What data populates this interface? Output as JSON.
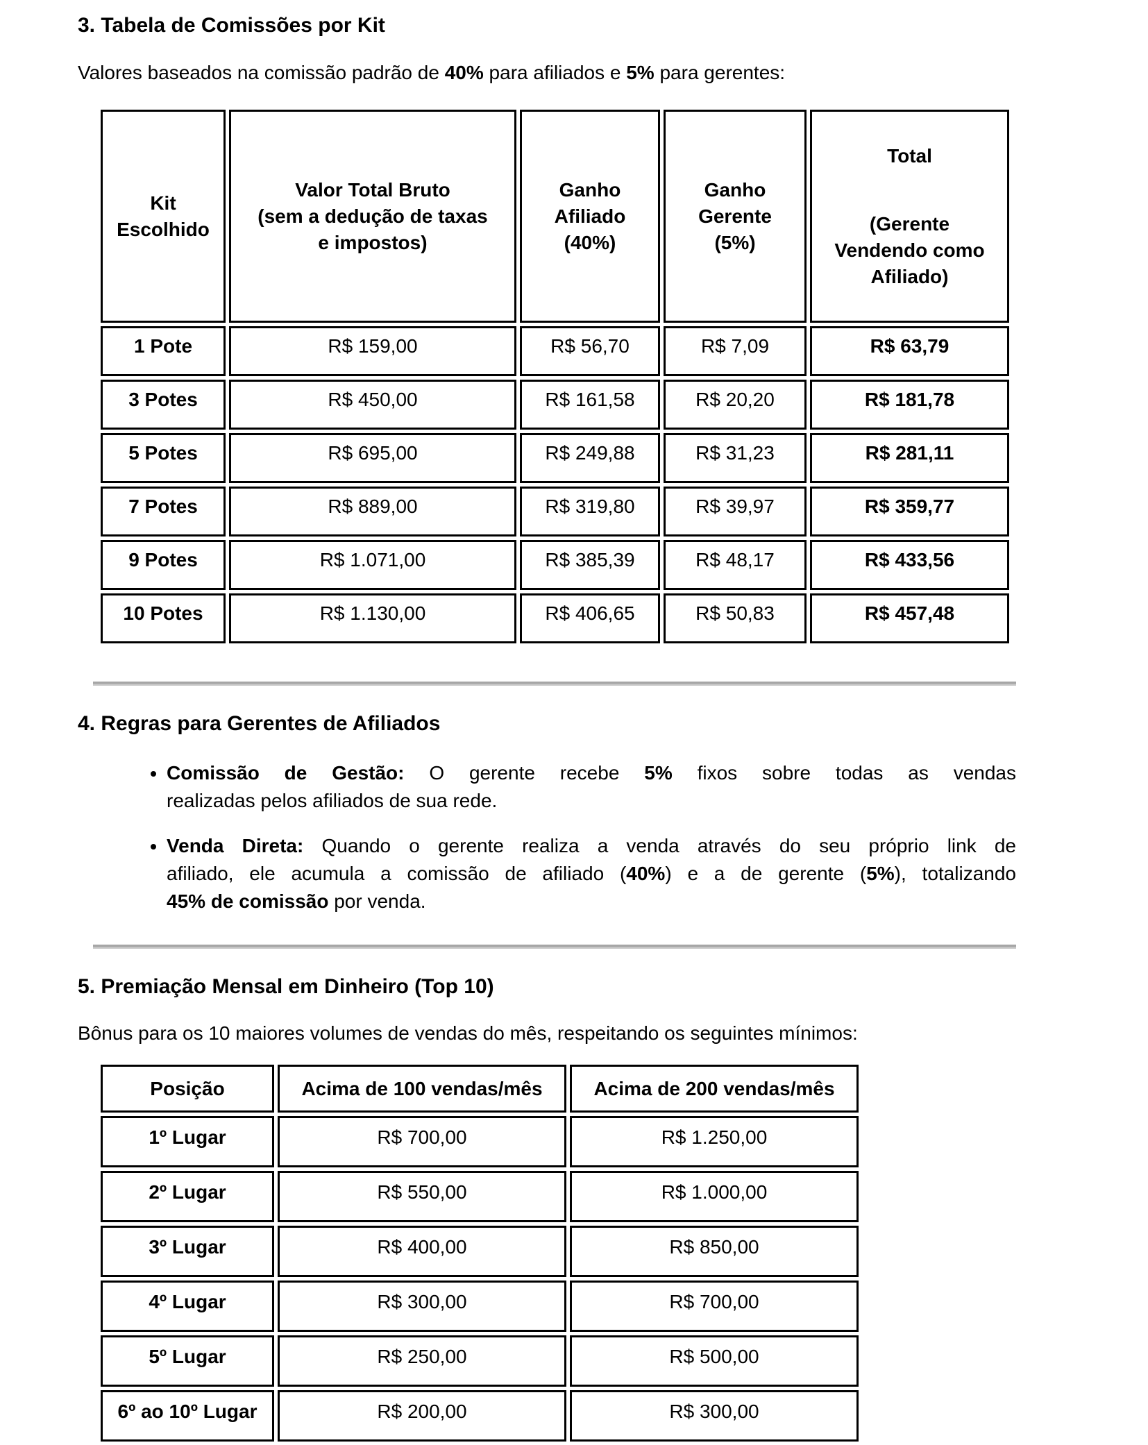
{
  "colors": {
    "text": "#000000",
    "table_border": "#000000",
    "divider": "#a6a6a6"
  },
  "section3": {
    "heading": "3. Tabela de Comissões por Kit",
    "intro": [
      {
        "t": "Valores baseados na comissão padrão de ",
        "b": false
      },
      {
        "t": "40%",
        "b": true
      },
      {
        "t": " para afiliados e ",
        "b": false
      },
      {
        "t": "5%",
        "b": true
      },
      {
        "t": " para gerentes:",
        "b": false
      }
    ]
  },
  "commission_table": {
    "headers": {
      "kit": "Kit\nEscolhido",
      "gross": "Valor Total Bruto\n(sem a dedução de taxas\ne impostos)",
      "affiliate": "Ganho\nAfiliado\n(40%)",
      "manager": "Ganho\nGerente\n(5%)",
      "total_title": "Total",
      "total_subtitle": "(Gerente\nVendendo como\nAfiliado)"
    },
    "rows": [
      {
        "kit": "1 Pote",
        "gross": "R$ 159,00",
        "affiliate": "R$ 56,70",
        "manager": "R$ 7,09",
        "total": "R$ 63,79"
      },
      {
        "kit": "3 Potes",
        "gross": "R$ 450,00",
        "affiliate": "R$ 161,58",
        "manager": "R$ 20,20",
        "total": "R$ 181,78"
      },
      {
        "kit": "5 Potes",
        "gross": "R$ 695,00",
        "affiliate": "R$ 249,88",
        "manager": "R$ 31,23",
        "total": "R$ 281,11"
      },
      {
        "kit": "7 Potes",
        "gross": "R$ 889,00",
        "affiliate": "R$ 319,80",
        "manager": "R$ 39,97",
        "total": "R$ 359,77"
      },
      {
        "kit": "9 Potes",
        "gross": "R$ 1.071,00",
        "affiliate": "R$ 385,39",
        "manager": "R$ 48,17",
        "total": "R$ 433,56"
      },
      {
        "kit": "10 Potes",
        "gross": "R$ 1.130,00",
        "affiliate": "R$ 406,65",
        "manager": "R$ 50,83",
        "total": "R$ 457,48"
      }
    ]
  },
  "rules": {
    "heading": "4. Regras para Gerentes de Afiliados",
    "bullets": [
      {
        "lines": [
          [
            {
              "t": "Comissão de Gestão:",
              "b": true
            },
            {
              "t": " O gerente recebe ",
              "b": false
            },
            {
              "t": "5%",
              "b": true
            },
            {
              "t": " fixos sobre todas as vendas",
              "b": false
            }
          ],
          [
            {
              "t": "realizadas pelos afiliados de sua rede.",
              "b": false
            }
          ]
        ]
      },
      {
        "lines": [
          [
            {
              "t": "Venda Direta:",
              "b": true
            },
            {
              "t": " Quando o gerente realiza a venda através do seu próprio link de",
              "b": false
            }
          ],
          [
            {
              "t": "afiliado, ele acumula a comissão de afiliado (",
              "b": false
            },
            {
              "t": "40%",
              "b": true
            },
            {
              "t": ") e a de gerente (",
              "b": false
            },
            {
              "t": "5%",
              "b": true
            },
            {
              "t": "), totalizando",
              "b": false
            }
          ],
          [
            {
              "t": "45% de comissão",
              "b": true
            },
            {
              "t": " por venda.",
              "b": false
            }
          ]
        ]
      }
    ]
  },
  "awards": {
    "heading": "5. Premiação Mensal em Dinheiro (Top 10)",
    "intro": "Bônus para os 10 maiores volumes de vendas do mês, respeitando os seguintes mínimos:",
    "table": {
      "headers": {
        "position": "Posição",
        "over100": "Acima de 100 vendas/mês",
        "over200": "Acima de 200 vendas/mês"
      },
      "rows": [
        {
          "pos": "1º Lugar",
          "over100": "R$ 700,00",
          "over200": "R$ 1.250,00"
        },
        {
          "pos": "2º Lugar",
          "over100": "R$ 550,00",
          "over200": "R$ 1.000,00"
        },
        {
          "pos": "3º Lugar",
          "over100": "R$ 400,00",
          "over200": "R$ 850,00"
        },
        {
          "pos": "4º Lugar",
          "over100": "R$ 300,00",
          "over200": "R$ 700,00"
        },
        {
          "pos": "5º Lugar",
          "over100": "R$ 250,00",
          "over200": "R$ 500,00"
        },
        {
          "pos": "6º ao 10º Lugar",
          "over100": "R$ 200,00",
          "over200": "R$ 300,00"
        }
      ]
    }
  }
}
